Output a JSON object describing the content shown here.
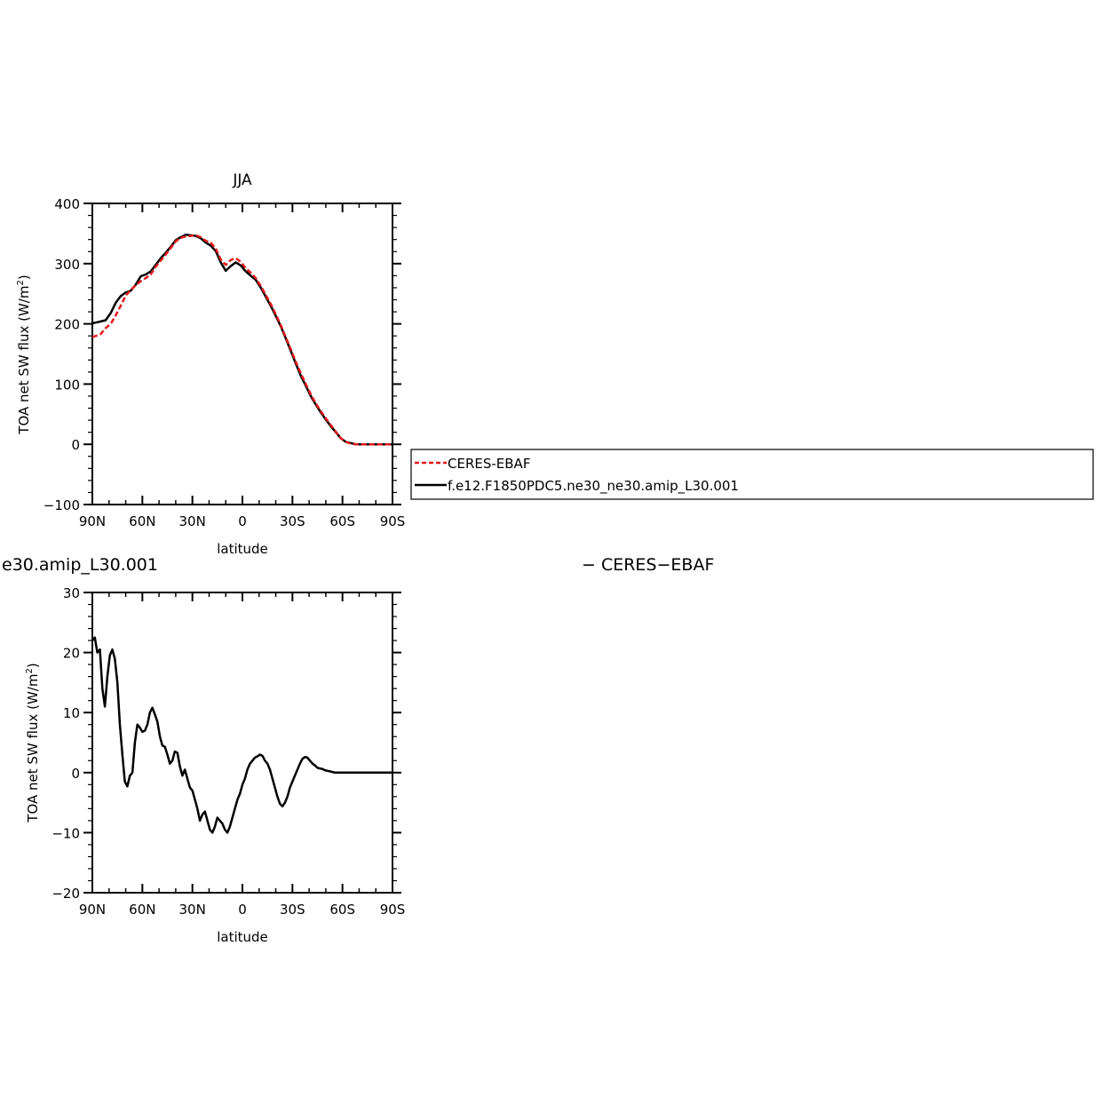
{
  "chart_data": [
    {
      "type": "line",
      "title": "JJA",
      "xlabel": "latitude",
      "ylabel": "TOA net SW flux (W/m",
      "ylabel_sup": "2",
      "ylabel_end": ")",
      "xlim": [
        90,
        -90
      ],
      "ylim": [
        -100,
        400
      ],
      "yticks": [
        -100,
        0,
        100,
        200,
        300,
        400
      ],
      "yticklabels": [
        "−100",
        "0",
        "100",
        "200",
        "300",
        "400"
      ],
      "xticks": [
        90,
        60,
        30,
        0,
        -30,
        -60,
        -90
      ],
      "xticklabels": [
        "90N",
        "60N",
        "30N",
        "0",
        "30S",
        "60S",
        "90S"
      ],
      "grid": false,
      "legend": "right",
      "series": [
        {
          "name": "CERES-EBAF",
          "color": "#e41a1c",
          "dash": "dashed",
          "x": [
            90,
            88,
            85,
            82,
            79,
            76,
            73,
            70,
            67,
            64,
            61,
            58,
            55,
            52,
            49,
            46,
            43,
            40,
            37,
            34,
            31,
            28,
            25,
            22,
            19,
            16,
            13,
            10,
            7,
            4,
            1,
            -2,
            -5,
            -8,
            -11,
            -14,
            -17,
            -20,
            -23,
            -26,
            -29,
            -32,
            -35,
            -38,
            -41,
            -44,
            -47,
            -50,
            -53,
            -56,
            -59,
            -62,
            -65,
            -68,
            -71,
            -74,
            -77,
            -80,
            -85,
            -90
          ],
          "y": [
            178,
            180,
            183,
            193,
            200,
            214,
            230,
            247,
            256,
            264,
            271,
            276,
            282,
            295,
            305,
            315,
            326,
            337,
            343,
            345,
            346,
            347,
            344,
            338,
            335,
            325,
            307,
            298,
            306,
            309,
            303,
            292,
            285,
            276,
            263,
            248,
            233,
            216,
            198,
            178,
            158,
            137,
            118,
            100,
            83,
            68,
            55,
            43,
            32,
            21,
            10,
            4,
            1,
            0,
            0,
            0,
            0,
            0,
            0,
            0
          ]
        },
        {
          "name": "f.e12.F1850PDC5.ne30_ne30.amip_L30.001",
          "color": "#000000",
          "dash": "solid",
          "x": [
            90,
            88,
            85,
            82,
            79,
            76,
            73,
            70,
            67,
            64,
            61,
            58,
            55,
            52,
            49,
            46,
            43,
            40,
            37,
            34,
            31,
            28,
            25,
            22,
            19,
            16,
            13,
            10,
            7,
            4,
            1,
            -2,
            -5,
            -8,
            -11,
            -14,
            -17,
            -20,
            -23,
            -26,
            -29,
            -32,
            -35,
            -38,
            -41,
            -44,
            -47,
            -50,
            -53,
            -56,
            -59,
            -62,
            -65,
            -68,
            -71,
            -74,
            -77,
            -80,
            -85,
            -90
          ],
          "y": [
            201,
            202,
            204,
            206,
            218,
            235,
            246,
            252,
            255,
            265,
            279,
            282,
            287,
            298,
            309,
            318,
            328,
            339,
            344,
            348,
            347,
            346,
            342,
            335,
            330,
            321,
            302,
            288,
            296,
            302,
            297,
            287,
            280,
            273,
            260,
            245,
            230,
            213,
            196,
            176,
            155,
            134,
            114,
            97,
            80,
            66,
            53,
            41,
            30,
            20,
            10,
            4,
            2,
            0,
            0,
            0,
            0,
            0,
            0,
            0
          ]
        }
      ]
    },
    {
      "type": "line",
      "title_left": "e30.amip_L30.001",
      "title_right": "− CERES−EBAF",
      "xlabel": "latitude",
      "ylabel": "TOA net SW flux (W/m",
      "ylabel_sup": "2",
      "ylabel_end": ")",
      "xlim": [
        90,
        -90
      ],
      "ylim": [
        -20,
        30
      ],
      "yticks": [
        -20,
        -10,
        0,
        10,
        20,
        30
      ],
      "yticklabels": [
        "−20",
        "−10",
        "0",
        "10",
        "20",
        "30"
      ],
      "xticks": [
        90,
        60,
        30,
        0,
        -30,
        -60,
        -90
      ],
      "xticklabels": [
        "90N",
        "60N",
        "30N",
        "0",
        "30S",
        "60S",
        "90S"
      ],
      "grid": false,
      "series": [
        {
          "color": "#000000",
          "x": [
            90,
            88.5,
            87,
            85.5,
            84,
            82.5,
            81,
            79.5,
            78,
            76.5,
            75,
            73.5,
            72,
            70.5,
            69,
            67.5,
            66,
            64.5,
            63,
            61.5,
            60,
            58.5,
            57,
            55.5,
            54,
            52.5,
            51,
            49.5,
            48,
            46.5,
            45,
            43.5,
            42,
            40.5,
            39,
            37.5,
            36,
            34.5,
            33,
            31.5,
            30,
            28.5,
            27,
            25.5,
            24,
            22.5,
            21,
            19.5,
            18,
            16.5,
            15,
            13.5,
            12,
            10.5,
            9,
            7.5,
            6,
            4.5,
            3,
            1.5,
            0,
            -1.5,
            -3,
            -4.5,
            -6,
            -7.5,
            -9,
            -10.5,
            -12,
            -13.5,
            -15,
            -16.5,
            -18,
            -19.5,
            -21,
            -22.5,
            -24,
            -25.5,
            -27,
            -28.5,
            -30,
            -31.5,
            -33,
            -34.5,
            -36,
            -37.5,
            -39,
            -40.5,
            -42,
            -43.5,
            -45,
            -46.5,
            -48,
            -49.5,
            -51,
            -52.5,
            -54,
            -55.5,
            -57,
            -58.5,
            -60,
            -61.5,
            -63,
            -64.5,
            -66,
            -67.5,
            -69,
            -70.5,
            -72,
            -73.5,
            -75,
            -78,
            -81,
            -84,
            -87,
            -90
          ],
          "y": [
            22,
            22.5,
            20,
            20.5,
            14,
            11,
            16,
            19.5,
            20.5,
            19,
            15,
            8,
            3,
            -1.5,
            -2.3,
            -0.5,
            0,
            5,
            8,
            7.5,
            6.8,
            7,
            8,
            10,
            10.8,
            9.7,
            8.5,
            6,
            4.5,
            4.3,
            3,
            1.5,
            2,
            3.5,
            3.3,
            1,
            -0.5,
            0.5,
            -1,
            -2.5,
            -3,
            -4.5,
            -6,
            -8,
            -7,
            -6.5,
            -8,
            -9.5,
            -10,
            -9,
            -7.5,
            -8,
            -8.5,
            -9.5,
            -10,
            -9,
            -7.5,
            -6,
            -4.5,
            -3.5,
            -2,
            -1,
            0.5,
            1.5,
            2,
            2.5,
            2.7,
            3,
            2.8,
            2,
            1.5,
            0.5,
            -1,
            -2.5,
            -4,
            -5.2,
            -5.6,
            -5,
            -4,
            -2.5,
            -1.5,
            -0.5,
            0.5,
            1.5,
            2.3,
            2.6,
            2.5,
            2,
            1.5,
            1.2,
            0.8,
            0.7,
            0.6,
            0.4,
            0.3,
            0.2,
            0.1,
            0,
            0,
            0,
            0,
            0,
            0,
            0,
            0,
            0,
            0,
            0,
            0,
            0,
            0,
            0,
            0,
            0,
            0,
            0
          ]
        }
      ]
    }
  ]
}
